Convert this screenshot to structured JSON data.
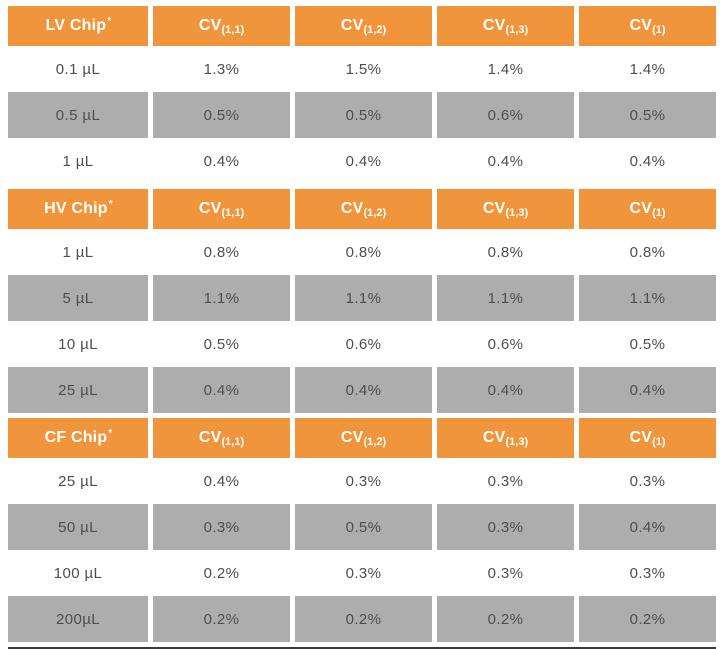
{
  "colors": {
    "header_orange": "#F0953C",
    "row_gray": "#ADADAD",
    "header_text": "#FFFFFF",
    "body_text": "#4D4E50",
    "bottom_rule": "#3A3A3A"
  },
  "tables": [
    {
      "chip": {
        "label": "LV Chip",
        "sup": "*"
      },
      "cv_headers": [
        {
          "base": "CV",
          "sub": "(1,1)"
        },
        {
          "base": "CV",
          "sub": "(1,2)"
        },
        {
          "base": "CV",
          "sub": "(1,3)"
        },
        {
          "base": "CV",
          "sub": "(1)"
        }
      ],
      "rows": [
        {
          "volume": "0.1 µL",
          "values": [
            "1.3%",
            "1.5%",
            "1.4%",
            "1.4%"
          ]
        },
        {
          "volume": "0.5 µL",
          "values": [
            "0.5%",
            "0.5%",
            "0.6%",
            "0.5%"
          ]
        },
        {
          "volume": "1 µL",
          "values": [
            "0.4%",
            "0.4%",
            "0.4%",
            "0.4%"
          ]
        }
      ]
    },
    {
      "chip": {
        "label": "HV Chip",
        "sup": "*"
      },
      "cv_headers": [
        {
          "base": "CV",
          "sub": "(1,1)"
        },
        {
          "base": "CV",
          "sub": "(1,2)"
        },
        {
          "base": "CV",
          "sub": "(1,3)"
        },
        {
          "base": "CV",
          "sub": "(1)"
        }
      ],
      "rows": [
        {
          "volume": "1 µL",
          "values": [
            "0.8%",
            "0.8%",
            "0.8%",
            "0.8%"
          ]
        },
        {
          "volume": "5 µL",
          "values": [
            "1.1%",
            "1.1%",
            "1.1%",
            "1.1%"
          ]
        },
        {
          "volume": "10 µL",
          "values": [
            "0.5%",
            "0.6%",
            "0.6%",
            "0.5%"
          ]
        },
        {
          "volume": "25 µL",
          "values": [
            "0.4%",
            "0.4%",
            "0.4%",
            "0.4%"
          ]
        }
      ]
    },
    {
      "chip": {
        "label": "CF Chip",
        "sup": "*"
      },
      "cv_headers": [
        {
          "base": "CV",
          "sub": "(1,1)"
        },
        {
          "base": "CV",
          "sub": "(1,2)"
        },
        {
          "base": "CV",
          "sub": "(1,3)"
        },
        {
          "base": "CV",
          "sub": "(1)"
        }
      ],
      "rows": [
        {
          "volume": "25 µL",
          "values": [
            "0.4%",
            "0.3%",
            "0.3%",
            "0.3%"
          ]
        },
        {
          "volume": "50 µL",
          "values": [
            "0.3%",
            "0.5%",
            "0.3%",
            "0.4%"
          ]
        },
        {
          "volume": "100 µL",
          "values": [
            "0.2%",
            "0.3%",
            "0.3%",
            "0.3%"
          ]
        },
        {
          "volume": "200µL",
          "values": [
            "0.2%",
            "0.2%",
            "0.2%",
            "0.2%"
          ]
        }
      ]
    }
  ]
}
